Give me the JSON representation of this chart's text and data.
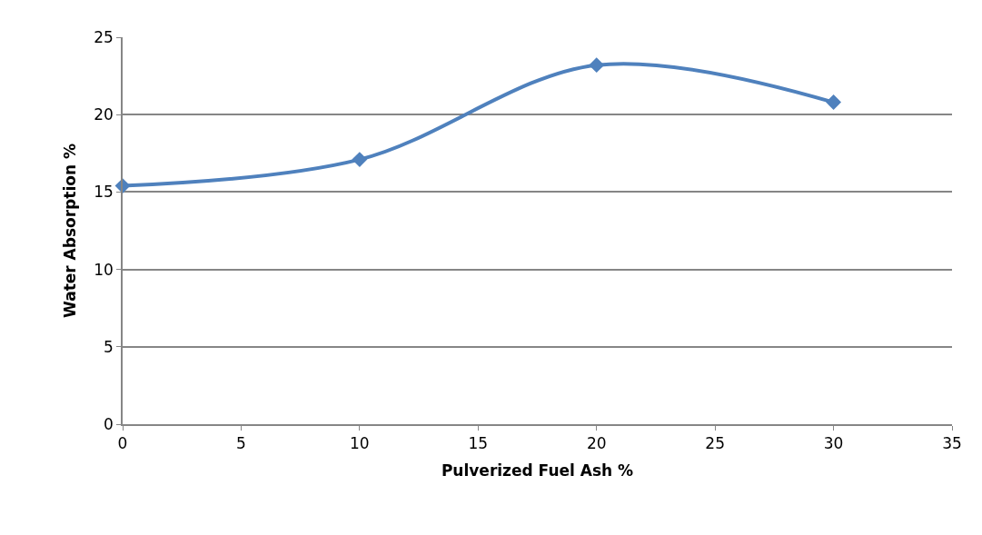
{
  "chart_data": {
    "type": "line",
    "xlabel": "Pulverized Fuel Ash %",
    "ylabel": "Water Absorption %",
    "x": [
      0,
      10,
      20,
      30
    ],
    "series": [
      {
        "color": "#4f81bd",
        "values": [
          15.4,
          17.1,
          23.2,
          20.8
        ]
      }
    ],
    "xlim": [
      0,
      35
    ],
    "xticks": [
      0,
      5,
      10,
      15,
      20,
      25,
      30,
      35
    ],
    "ylim": [
      0,
      25
    ],
    "yticks": [
      0,
      5,
      10,
      15,
      20,
      25
    ],
    "grid": "y",
    "marker": "diamond",
    "line_style": "solid",
    "legend": false
  }
}
